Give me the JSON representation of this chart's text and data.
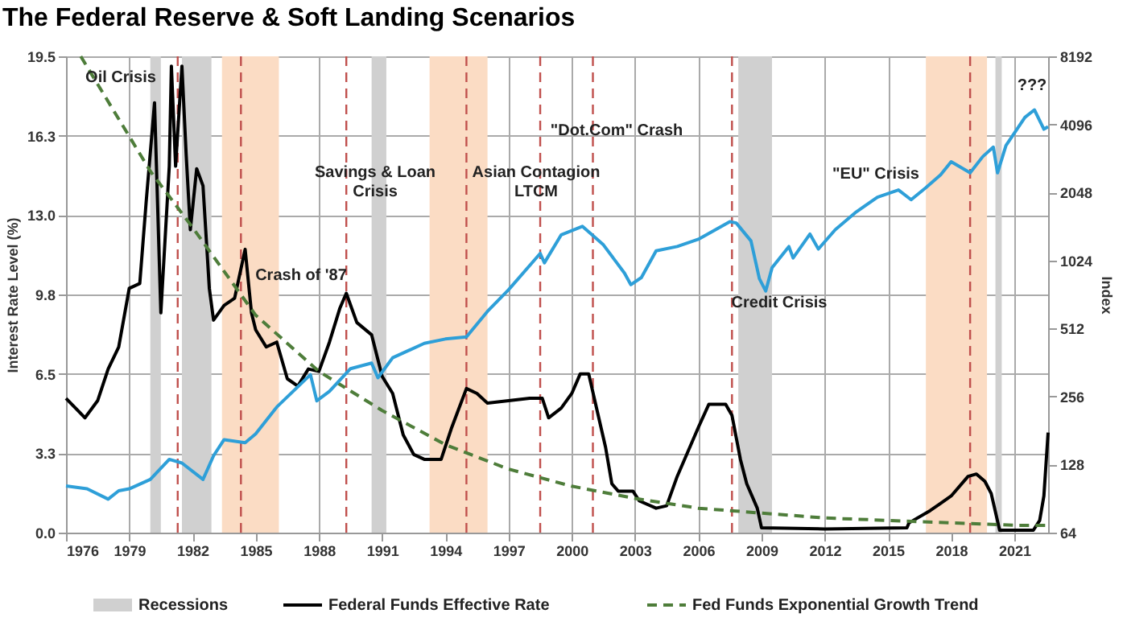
{
  "chart_data": {
    "type": "line",
    "title": "The Federal Reserve & Soft Landing Scenarios",
    "ylabel": "Interest Rate Level (%)",
    "y2label": "Index",
    "xlim": [
      1976,
      2022.6
    ],
    "xticks": [
      1976,
      1979,
      1982,
      1985,
      1988,
      1991,
      1994,
      1997,
      2000,
      2003,
      2006,
      2009,
      2012,
      2015,
      2018,
      2021
    ],
    "ylim": [
      0,
      19.5
    ],
    "yticks": [
      {
        "value": 0,
        "label": "0.0"
      },
      {
        "value": 3.25,
        "label": "3.3"
      },
      6.5,
      {
        "value": 9.75,
        "label": "9.8"
      },
      {
        "value": 13,
        "label": "13.0"
      },
      {
        "value": 16.25,
        "label": "16.3"
      },
      19.5
    ],
    "y2lim": [
      64,
      8192
    ],
    "y2ticks": [
      64,
      128,
      256,
      512,
      1024,
      2048,
      4096,
      8192
    ],
    "log": "y2",
    "grid": true,
    "legend": "bottom",
    "marker": "none",
    "series": [
      {
        "name": "Federal Funds Effective Rate",
        "color": "#000000",
        "line_style": "solid",
        "x": [
          1976.0,
          1976.9,
          1977.5,
          1978.0,
          1978.5,
          1979.0,
          1979.5,
          1979.8,
          1980.2,
          1980.5,
          1980.9,
          1981.0,
          1981.2,
          1981.5,
          1981.7,
          1981.9,
          1982.2,
          1982.5,
          1982.8,
          1983.0,
          1983.5,
          1984.0,
          1984.5,
          1984.8,
          1985.0,
          1985.5,
          1986.0,
          1986.5,
          1987.0,
          1987.5,
          1988.0,
          1988.5,
          1989.0,
          1989.3,
          1989.8,
          1990.5,
          1991.0,
          1991.5,
          1992.0,
          1992.5,
          1993.0,
          1993.8,
          1994.3,
          1995.0,
          1995.5,
          1996.0,
          1997.0,
          1998.0,
          1998.6,
          1998.9,
          1999.5,
          2000.0,
          2000.4,
          2000.8,
          2001.2,
          2001.6,
          2001.9,
          2002.2,
          2002.9,
          2003.2,
          2004.0,
          2004.5,
          2005.0,
          2006.0,
          2006.5,
          2007.3,
          2007.6,
          2008.0,
          2008.3,
          2008.8,
          2009.0,
          2012.0,
          2015.9,
          2016.0,
          2017.0,
          2017.5,
          2018.0,
          2018.8,
          2019.2,
          2019.6,
          2019.9,
          2020.3,
          2021.9,
          2022.2,
          2022.4,
          2022.6
        ],
        "values": [
          5.5,
          4.7,
          5.4,
          6.7,
          7.6,
          10.0,
          10.2,
          13.5,
          17.6,
          9.0,
          15.0,
          19.1,
          15.0,
          19.1,
          15.5,
          12.4,
          14.9,
          14.2,
          10.0,
          8.7,
          9.3,
          9.6,
          11.6,
          9.0,
          8.3,
          7.6,
          7.8,
          6.3,
          6.0,
          6.7,
          6.6,
          7.8,
          9.2,
          9.8,
          8.6,
          8.1,
          6.4,
          5.7,
          4.0,
          3.2,
          3.0,
          3.0,
          4.3,
          5.9,
          5.7,
          5.3,
          5.4,
          5.5,
          5.5,
          4.7,
          5.1,
          5.7,
          6.5,
          6.5,
          5.0,
          3.5,
          2.0,
          1.7,
          1.7,
          1.3,
          1.0,
          1.1,
          2.3,
          4.3,
          5.25,
          5.25,
          4.8,
          3.0,
          2.0,
          1.0,
          0.2,
          0.15,
          0.2,
          0.4,
          0.9,
          1.2,
          1.5,
          2.3,
          2.4,
          2.1,
          1.6,
          0.1,
          0.1,
          0.5,
          1.5,
          4.1
        ]
      },
      {
        "name": "Fed Funds Exponential Growth Trend",
        "color": "#4e7d3a",
        "line_style": "dashed",
        "x": [
          1976.7,
          1980,
          1982,
          1985,
          1988,
          1991,
          1994,
          1997,
          2000,
          2003,
          2006,
          2009,
          2012,
          2015,
          2018,
          2021,
          2022.6
        ],
        "values": [
          19.5,
          14.8,
          12.5,
          8.9,
          6.6,
          5.0,
          3.6,
          2.6,
          1.9,
          1.4,
          1.0,
          0.8,
          0.6,
          0.5,
          0.4,
          0.3,
          0.3
        ]
      },
      {
        "color": "#2e9fd8",
        "line_style": "solid",
        "axis": "y2",
        "x": [
          1976.0,
          1977.0,
          1978.0,
          1978.5,
          1979.0,
          1980.0,
          1980.9,
          1981.5,
          1982.5,
          1983.0,
          1983.5,
          1984.5,
          1985.0,
          1986.0,
          1987.6,
          1987.9,
          1988.5,
          1989.5,
          1990.5,
          1990.8,
          1991.5,
          1993.0,
          1994.0,
          1995.0,
          1996.0,
          1997.0,
          1998.5,
          1998.7,
          1999.5,
          2000.5,
          2001.5,
          2002.5,
          2002.8,
          2003.3,
          2004.0,
          2005.0,
          2006.0,
          2007.5,
          2007.8,
          2008.5,
          2008.9,
          2009.2,
          2009.5,
          2010.3,
          2010.5,
          2011.3,
          2011.7,
          2012.5,
          2013.5,
          2014.5,
          2015.5,
          2016.1,
          2016.8,
          2017.5,
          2018.0,
          2018.9,
          2019.5,
          2020.0,
          2020.2,
          2020.6,
          2021.0,
          2021.5,
          2021.95,
          2022.4,
          2022.6
        ],
        "values": [
          103,
          100,
          90,
          98,
          100,
          110,
          135,
          130,
          110,
          140,
          165,
          160,
          175,
          230,
          320,
          245,
          270,
          340,
          360,
          310,
          380,
          440,
          460,
          470,
          610,
          760,
          1100,
          1000,
          1330,
          1450,
          1200,
          900,
          800,
          860,
          1130,
          1180,
          1270,
          1520,
          1500,
          1250,
          850,
          750,
          950,
          1180,
          1050,
          1340,
          1150,
          1400,
          1680,
          1950,
          2100,
          1900,
          2150,
          2450,
          2800,
          2500,
          2950,
          3250,
          2500,
          3300,
          3750,
          4400,
          4750,
          3900,
          4000
        ]
      }
    ],
    "bands": [
      {
        "axis": "x",
        "from": 1980.0,
        "to": 1980.5,
        "label": "Recessions",
        "color": "#d0d0d0"
      },
      {
        "axis": "x",
        "from": 1981.5,
        "to": 1982.9,
        "color": "#d0d0d0"
      },
      {
        "axis": "x",
        "from": 1990.5,
        "to": 1991.2,
        "color": "#d0d0d0"
      },
      {
        "axis": "x",
        "from": 2007.9,
        "to": 2009.5,
        "color": "#d0d0d0"
      },
      {
        "axis": "x",
        "from": 2020.1,
        "to": 2020.4,
        "color": "#d0d0d0"
      },
      {
        "axis": "x",
        "from": 1983.4,
        "to": 1986.1,
        "color": "#fbdcc4"
      },
      {
        "axis": "x",
        "from": 1993.25,
        "to": 1996.0,
        "color": "#fbdcc4"
      },
      {
        "axis": "x",
        "from": 2016.8,
        "to": 2019.7,
        "color": "#fbdcc4"
      }
    ],
    "ref_lines": [
      {
        "axis": "x",
        "value": 1981.3,
        "color": "#c0504d",
        "line_style": "dashed"
      },
      {
        "axis": "x",
        "value": 1984.3,
        "color": "#c0504d",
        "line_style": "dashed"
      },
      {
        "axis": "x",
        "value": 1989.3,
        "color": "#c0504d",
        "line_style": "dashed"
      },
      {
        "axis": "x",
        "value": 1995.0,
        "color": "#c0504d",
        "line_style": "dashed"
      },
      {
        "axis": "x",
        "value": 1998.5,
        "color": "#c0504d",
        "line_style": "dashed"
      },
      {
        "axis": "x",
        "value": 2001.0,
        "color": "#c0504d",
        "line_style": "dashed"
      },
      {
        "axis": "x",
        "value": 2007.6,
        "color": "#c0504d",
        "line_style": "dashed"
      },
      {
        "axis": "x",
        "value": 2018.9,
        "color": "#c0504d",
        "line_style": "dashed"
      }
    ],
    "annotations": [
      "Oil Crisis",
      "Crash of '87",
      "Savings & Loan\nCrisis",
      "Asian Contagion\nLTCM",
      "\"Dot.Com\" Crash",
      "Credit Crisis",
      "\"EU\" Crisis",
      "???"
    ]
  }
}
